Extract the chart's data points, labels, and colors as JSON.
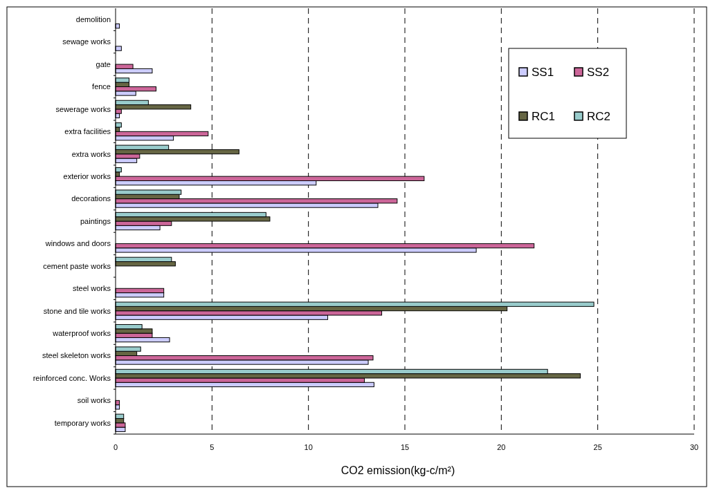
{
  "chart_data": {
    "type": "bar",
    "orientation": "horizontal",
    "xlabel": "CO2 emission(kg-c/m²)",
    "categories": [
      "demolition",
      "sewage works",
      "gate",
      "fence",
      "sewerage works",
      "extra facilities",
      "extra works",
      "exterior works",
      "decorations",
      "paintings",
      "windows and doors",
      "cement paste works",
      "steel works",
      "stone and tile works",
      "waterproof works",
      "steel skeleton works",
      "reinforced conc. Works",
      "soil works",
      "temporary works"
    ],
    "series": [
      {
        "name": "SS1",
        "color": "#ccccff",
        "values": [
          0.2,
          0.3,
          1.9,
          1.05,
          0.2,
          3.0,
          1.1,
          10.4,
          13.6,
          2.3,
          18.7,
          null,
          2.5,
          11.0,
          2.8,
          13.1,
          13.4,
          0.2,
          0.5
        ]
      },
      {
        "name": "SS2",
        "color": "#cc6699",
        "values": [
          null,
          null,
          0.9,
          2.1,
          0.3,
          4.8,
          1.25,
          16.0,
          14.6,
          2.9,
          21.7,
          null,
          2.5,
          13.8,
          1.9,
          13.35,
          12.9,
          0.2,
          0.5
        ]
      },
      {
        "name": "RC1",
        "color": "#666644",
        "values": [
          null,
          null,
          null,
          0.7,
          3.9,
          0.2,
          6.4,
          0.2,
          3.3,
          8.0,
          null,
          3.1,
          null,
          20.3,
          1.9,
          1.1,
          24.1,
          null,
          0.42
        ]
      },
      {
        "name": "RC2",
        "color": "#99cccc",
        "values": [
          null,
          null,
          null,
          0.7,
          1.7,
          0.3,
          2.75,
          0.3,
          3.4,
          7.8,
          null,
          2.9,
          null,
          24.8,
          1.37,
          1.3,
          22.4,
          null,
          0.42
        ]
      }
    ],
    "xlim": [
      0,
      30
    ],
    "xticks": [
      0,
      5,
      10,
      15,
      20,
      25,
      30
    ],
    "grid": "x",
    "legend": "top right"
  }
}
